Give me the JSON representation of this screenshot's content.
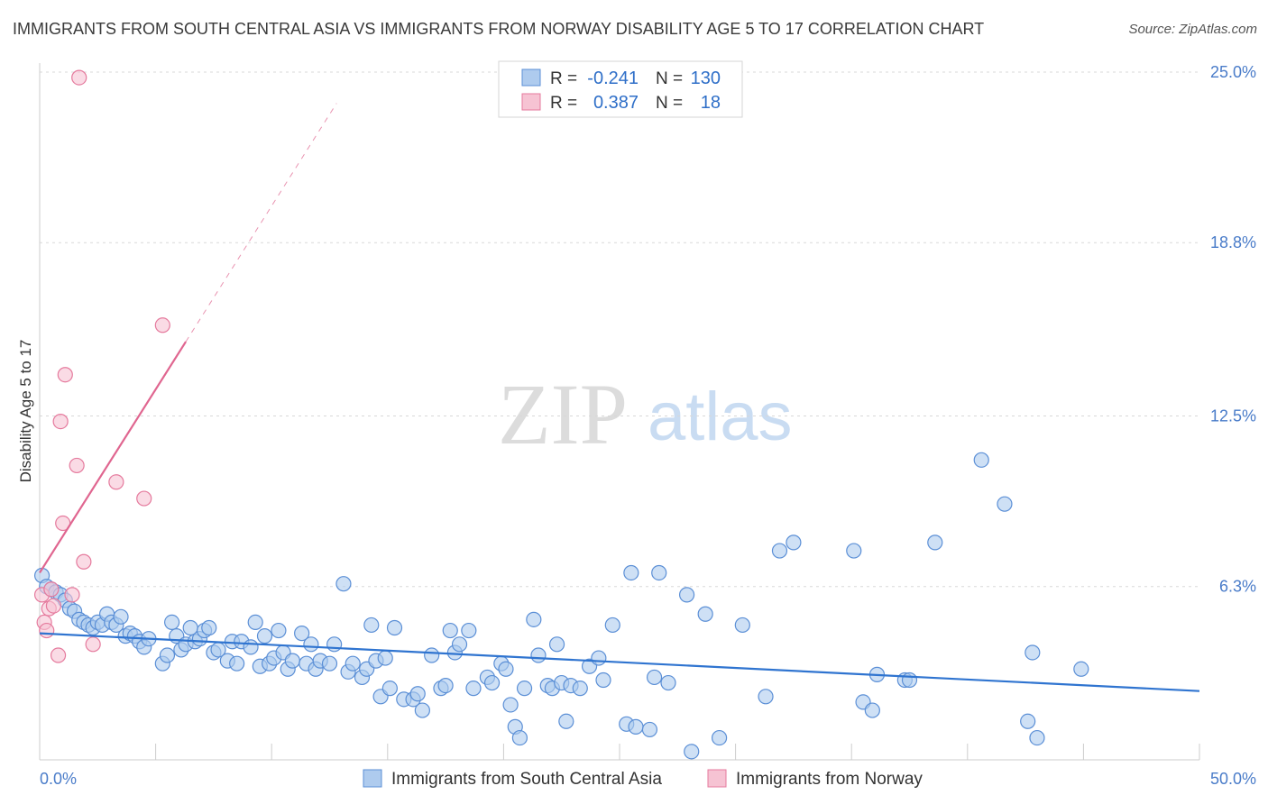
{
  "header": {
    "title": "IMMIGRANTS FROM SOUTH CENTRAL ASIA VS IMMIGRANTS FROM NORWAY DISABILITY AGE 5 TO 17 CORRELATION CHART",
    "source": "Source: ZipAtlas.com"
  },
  "watermark": {
    "zip": "ZIP",
    "atlas": "atlas"
  },
  "colors": {
    "blue_fill": "#aecbee",
    "blue_stroke": "#5b8fd6",
    "blue_line": "#2f74d0",
    "pink_fill": "#f6c3d3",
    "pink_stroke": "#e57a9d",
    "pink_line": "#e06690",
    "tick_text": "#4a7cc9",
    "grid": "#d8d8d8"
  },
  "legend": {
    "r_label": "R =",
    "n_label": "N =",
    "rows": [
      {
        "r": "-0.241",
        "n": "130"
      },
      {
        "r": "0.387",
        "n": "18"
      }
    ]
  },
  "chart_data": {
    "type": "scatter",
    "title": "IMMIGRANTS FROM SOUTH CENTRAL ASIA VS IMMIGRANTS FROM NORWAY DISABILITY AGE 5 TO 17 CORRELATION CHART",
    "xlabel": "",
    "ylabel": "Disability Age 5 to 17",
    "xlim": [
      0,
      50
    ],
    "ylim": [
      0,
      25.0
    ],
    "x_tick_labels": [
      "0.0%",
      "50.0%"
    ],
    "y_ticks": [
      6.3,
      12.5,
      18.8,
      25.0
    ],
    "y_tick_labels": [
      "6.3%",
      "12.5%",
      "18.8%",
      "25.0%"
    ],
    "grid": true,
    "legend_position": "bottom",
    "series": [
      {
        "name": "Immigrants from South Central Asia",
        "r": -0.241,
        "n": 130,
        "trend": {
          "x0": 0,
          "y0": 4.6,
          "x1": 50,
          "y1": 2.5,
          "dashed_to": 50
        },
        "points": [
          [
            0.1,
            6.7
          ],
          [
            0.3,
            6.3
          ],
          [
            0.5,
            6.2
          ],
          [
            0.7,
            6.1
          ],
          [
            0.9,
            6.0
          ],
          [
            1.1,
            5.8
          ],
          [
            1.3,
            5.5
          ],
          [
            1.5,
            5.4
          ],
          [
            1.7,
            5.1
          ],
          [
            1.9,
            5.0
          ],
          [
            2.1,
            4.9
          ],
          [
            2.3,
            4.8
          ],
          [
            2.5,
            5.0
          ],
          [
            2.7,
            4.9
          ],
          [
            2.9,
            5.3
          ],
          [
            3.1,
            5.0
          ],
          [
            3.3,
            4.9
          ],
          [
            3.5,
            5.2
          ],
          [
            3.7,
            4.5
          ],
          [
            3.9,
            4.6
          ],
          [
            4.1,
            4.5
          ],
          [
            4.3,
            4.3
          ],
          [
            4.5,
            4.1
          ],
          [
            4.7,
            4.4
          ],
          [
            5.3,
            3.5
          ],
          [
            5.5,
            3.8
          ],
          [
            5.7,
            5.0
          ],
          [
            5.9,
            4.5
          ],
          [
            6.1,
            4.0
          ],
          [
            6.3,
            4.2
          ],
          [
            6.5,
            4.8
          ],
          [
            6.7,
            4.3
          ],
          [
            6.9,
            4.4
          ],
          [
            7.1,
            4.7
          ],
          [
            7.3,
            4.8
          ],
          [
            7.5,
            3.9
          ],
          [
            7.7,
            4.0
          ],
          [
            8.1,
            3.6
          ],
          [
            8.3,
            4.3
          ],
          [
            8.5,
            3.5
          ],
          [
            8.7,
            4.3
          ],
          [
            9.1,
            4.1
          ],
          [
            9.3,
            5.0
          ],
          [
            9.5,
            3.4
          ],
          [
            9.7,
            4.5
          ],
          [
            9.9,
            3.5
          ],
          [
            10.1,
            3.7
          ],
          [
            10.3,
            4.7
          ],
          [
            10.5,
            3.9
          ],
          [
            10.7,
            3.3
          ],
          [
            10.9,
            3.6
          ],
          [
            11.3,
            4.6
          ],
          [
            11.5,
            3.5
          ],
          [
            11.7,
            4.2
          ],
          [
            11.9,
            3.3
          ],
          [
            12.1,
            3.6
          ],
          [
            12.5,
            3.5
          ],
          [
            12.7,
            4.2
          ],
          [
            13.1,
            6.4
          ],
          [
            13.3,
            3.2
          ],
          [
            13.5,
            3.5
          ],
          [
            13.9,
            3.0
          ],
          [
            14.1,
            3.3
          ],
          [
            14.3,
            4.9
          ],
          [
            14.5,
            3.6
          ],
          [
            14.7,
            2.3
          ],
          [
            14.9,
            3.7
          ],
          [
            15.1,
            2.6
          ],
          [
            15.3,
            4.8
          ],
          [
            15.7,
            2.2
          ],
          [
            16.1,
            2.2
          ],
          [
            16.3,
            2.4
          ],
          [
            16.5,
            1.8
          ],
          [
            16.9,
            3.8
          ],
          [
            17.3,
            2.6
          ],
          [
            17.5,
            2.7
          ],
          [
            17.7,
            4.7
          ],
          [
            17.9,
            3.9
          ],
          [
            18.1,
            4.2
          ],
          [
            18.5,
            4.7
          ],
          [
            18.7,
            2.6
          ],
          [
            19.3,
            3.0
          ],
          [
            19.5,
            2.8
          ],
          [
            19.9,
            3.5
          ],
          [
            20.1,
            3.3
          ],
          [
            20.3,
            2.0
          ],
          [
            20.5,
            1.2
          ],
          [
            20.7,
            0.8
          ],
          [
            20.9,
            2.6
          ],
          [
            21.3,
            5.1
          ],
          [
            21.5,
            3.8
          ],
          [
            21.9,
            2.7
          ],
          [
            22.1,
            2.6
          ],
          [
            22.3,
            4.2
          ],
          [
            22.5,
            2.8
          ],
          [
            22.7,
            1.4
          ],
          [
            22.9,
            2.7
          ],
          [
            23.3,
            2.6
          ],
          [
            23.7,
            3.4
          ],
          [
            24.1,
            3.7
          ],
          [
            24.3,
            2.9
          ],
          [
            24.7,
            4.9
          ],
          [
            25.3,
            1.3
          ],
          [
            25.5,
            6.8
          ],
          [
            25.7,
            1.2
          ],
          [
            26.3,
            1.1
          ],
          [
            26.5,
            3.0
          ],
          [
            26.7,
            6.8
          ],
          [
            27.1,
            2.8
          ],
          [
            27.9,
            6.0
          ],
          [
            28.1,
            0.3
          ],
          [
            28.7,
            5.3
          ],
          [
            29.3,
            0.8
          ],
          [
            30.3,
            4.9
          ],
          [
            31.3,
            2.3
          ],
          [
            31.9,
            7.6
          ],
          [
            32.5,
            7.9
          ],
          [
            35.1,
            7.6
          ],
          [
            35.5,
            2.1
          ],
          [
            35.9,
            1.8
          ],
          [
            36.1,
            3.1
          ],
          [
            37.3,
            2.9
          ],
          [
            37.5,
            2.9
          ],
          [
            38.6,
            7.9
          ],
          [
            40.6,
            10.9
          ],
          [
            41.6,
            9.3
          ],
          [
            42.6,
            1.4
          ],
          [
            43.0,
            0.8
          ],
          [
            42.8,
            3.9
          ],
          [
            44.9,
            3.3
          ]
        ]
      },
      {
        "name": "Immigrants from Norway",
        "r": 0.387,
        "n": 18,
        "trend": {
          "x0": 0,
          "y0": 6.8,
          "x1": 6.3,
          "y1": 15.2,
          "dashed_to": 12.8
        },
        "points": [
          [
            0.1,
            6.0
          ],
          [
            0.2,
            5.0
          ],
          [
            0.3,
            4.7
          ],
          [
            0.4,
            5.5
          ],
          [
            0.5,
            6.2
          ],
          [
            0.6,
            5.6
          ],
          [
            0.8,
            3.8
          ],
          [
            0.9,
            12.3
          ],
          [
            1.0,
            8.6
          ],
          [
            1.1,
            14.0
          ],
          [
            1.4,
            6.0
          ],
          [
            1.6,
            10.7
          ],
          [
            1.7,
            24.8
          ],
          [
            1.9,
            7.2
          ],
          [
            2.3,
            4.2
          ],
          [
            3.3,
            10.1
          ],
          [
            4.5,
            9.5
          ],
          [
            5.3,
            15.8
          ]
        ]
      }
    ]
  },
  "bottom_legend": {
    "items": [
      {
        "label": "Immigrants from South Central Asia"
      },
      {
        "label": "Immigrants from Norway"
      }
    ]
  }
}
